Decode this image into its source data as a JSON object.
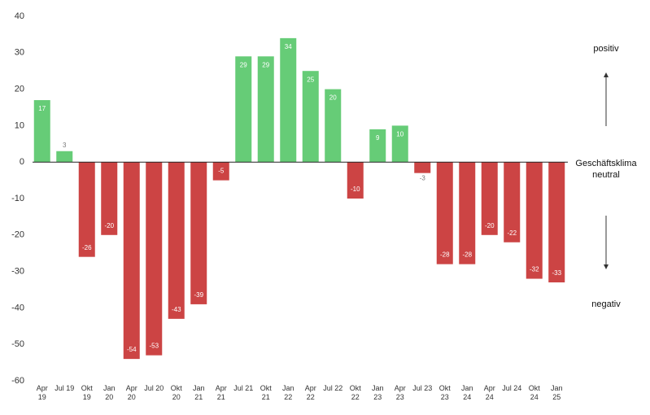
{
  "chart_data": {
    "type": "bar",
    "categories": [
      "Apr 19",
      "Jul 19",
      "Okt 19",
      "Jan 20",
      "Apr 20",
      "Jul 20",
      "Okt 20",
      "Jan 21",
      "Apr 21",
      "Jul 21",
      "Okt 21",
      "Jan 22",
      "Apr 22",
      "Jul 22",
      "Okt 22",
      "Jan 23",
      "Apr 23",
      "Jul 23",
      "Okt 23",
      "Jan 24",
      "Apr 24",
      "Jul 24",
      "Okt 24",
      "Jan 25"
    ],
    "values": [
      17,
      3,
      -26,
      -20,
      -54,
      -53,
      -43,
      -39,
      -5,
      29,
      29,
      34,
      25,
      20,
      -10,
      9,
      10,
      -3,
      -28,
      -28,
      -20,
      -22,
      -32,
      -33
    ],
    "positive_color": "#66cc77",
    "negative_color": "#cc4444",
    "ylim": [
      -60,
      40
    ],
    "yticks": [
      -60,
      -50,
      -40,
      -30,
      -20,
      -10,
      0,
      10,
      20,
      30,
      40
    ],
    "annotations": [
      "positiv",
      "Geschäftsklima neutral",
      "negativ"
    ]
  }
}
